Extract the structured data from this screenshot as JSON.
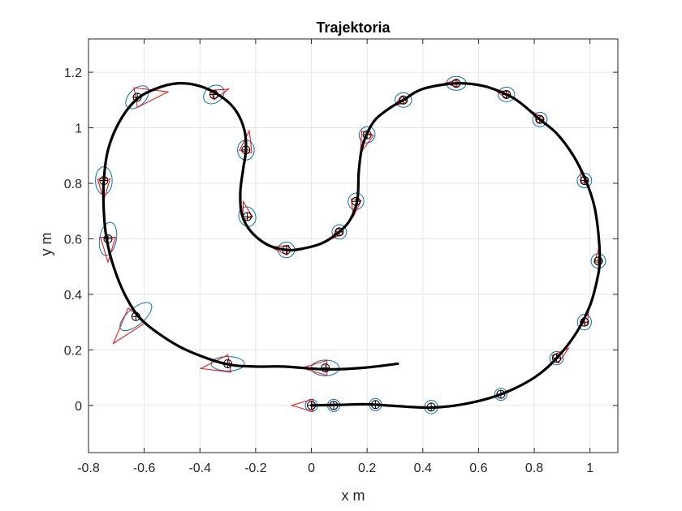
{
  "chart_data": {
    "type": "line",
    "title": "Trajektoria",
    "xlabel": "x m",
    "ylabel": "y m",
    "xlim": [
      -0.8,
      1.1
    ],
    "ylim": [
      -0.17,
      1.32
    ],
    "xticks": [
      -0.8,
      -0.6,
      -0.4,
      -0.2,
      0,
      0.2,
      0.4,
      0.6,
      0.8,
      1
    ],
    "xtick_labels": [
      "-0.8",
      "-0.6",
      "-0.4",
      "-0.2",
      "0",
      "0.2",
      "0.4",
      "0.6",
      "0.8",
      "1"
    ],
    "yticks": [
      0,
      0.2,
      0.4,
      0.6,
      0.8,
      1,
      1.2
    ],
    "ytick_labels": [
      "0",
      "0.2",
      "0.4",
      "0.6",
      "0.8",
      "1",
      "1.2"
    ],
    "grid": true,
    "colors": {
      "trajectory": "#000000",
      "ellipse": "#0072BD",
      "triangle": "#FF0000",
      "marker": "#000000",
      "grid": "#e6e6e6"
    },
    "trajectory": [
      [
        0,
        0
      ],
      [
        0.1,
        0.002
      ],
      [
        0.2,
        0.004
      ],
      [
        0.3,
        -0.002
      ],
      [
        0.43,
        -0.008
      ],
      [
        0.55,
        0.005
      ],
      [
        0.68,
        0.04
      ],
      [
        0.8,
        0.1
      ],
      [
        0.88,
        0.17
      ],
      [
        0.95,
        0.26
      ],
      [
        1.0,
        0.36
      ],
      [
        1.025,
        0.45
      ],
      [
        1.035,
        0.52
      ],
      [
        1.03,
        0.62
      ],
      [
        1.015,
        0.72
      ],
      [
        0.985,
        0.81
      ],
      [
        0.94,
        0.9
      ],
      [
        0.88,
        0.98
      ],
      [
        0.82,
        1.03
      ],
      [
        0.75,
        1.09
      ],
      [
        0.7,
        1.12
      ],
      [
        0.62,
        1.15
      ],
      [
        0.52,
        1.16
      ],
      [
        0.4,
        1.14
      ],
      [
        0.33,
        1.1
      ],
      [
        0.28,
        1.07
      ],
      [
        0.23,
        1.03
      ],
      [
        0.2,
        0.98
      ],
      [
        0.18,
        0.92
      ],
      [
        0.17,
        0.84
      ],
      [
        0.165,
        0.74
      ],
      [
        0.14,
        0.67
      ],
      [
        0.1,
        0.625
      ],
      [
        0.04,
        0.585
      ],
      [
        -0.03,
        0.565
      ],
      [
        -0.09,
        0.56
      ],
      [
        -0.16,
        0.58
      ],
      [
        -0.22,
        0.63
      ],
      [
        -0.25,
        0.69
      ],
      [
        -0.255,
        0.77
      ],
      [
        -0.245,
        0.85
      ],
      [
        -0.235,
        0.92
      ],
      [
        -0.24,
        0.99
      ],
      [
        -0.27,
        1.06
      ],
      [
        -0.32,
        1.11
      ],
      [
        -0.4,
        1.15
      ],
      [
        -0.48,
        1.16
      ],
      [
        -0.56,
        1.14
      ],
      [
        -0.63,
        1.1
      ],
      [
        -0.69,
        1.02
      ],
      [
        -0.73,
        0.92
      ],
      [
        -0.745,
        0.81
      ],
      [
        -0.745,
        0.7
      ],
      [
        -0.735,
        0.6
      ],
      [
        -0.71,
        0.5
      ],
      [
        -0.67,
        0.4
      ],
      [
        -0.62,
        0.32
      ],
      [
        -0.55,
        0.26
      ],
      [
        -0.45,
        0.2
      ],
      [
        -0.31,
        0.15
      ],
      [
        -0.2,
        0.14
      ],
      [
        -0.1,
        0.14
      ],
      [
        0.05,
        0.13
      ],
      [
        0.18,
        0.135
      ],
      [
        0.31,
        0.15
      ]
    ],
    "uncertainty_points": [
      {
        "x": 0.0,
        "y": 0.0,
        "ex": 0.022,
        "ey": 0.022,
        "tilt": 0,
        "dir": 180,
        "tri": 0.05
      },
      {
        "x": 0.08,
        "y": 0.0,
        "ex": 0.022,
        "ey": 0.022,
        "tilt": 0,
        "dir": 0,
        "tri": 0.0
      },
      {
        "x": 0.23,
        "y": 0.003,
        "ex": 0.022,
        "ey": 0.022,
        "tilt": 0,
        "dir": 0,
        "tri": 0.0
      },
      {
        "x": 0.43,
        "y": -0.006,
        "ex": 0.024,
        "ey": 0.024,
        "tilt": 0,
        "dir": 0,
        "tri": 0.0
      },
      {
        "x": 0.68,
        "y": 0.04,
        "ex": 0.022,
        "ey": 0.022,
        "tilt": 0,
        "dir": 0,
        "tri": 0.0
      },
      {
        "x": 0.88,
        "y": 0.17,
        "ex": 0.024,
        "ey": 0.024,
        "tilt": 0,
        "dir": 40,
        "tri": 0.04
      },
      {
        "x": 0.98,
        "y": 0.3,
        "ex": 0.025,
        "ey": 0.028,
        "tilt": 0,
        "dir": 70,
        "tri": 0.03
      },
      {
        "x": 1.03,
        "y": 0.52,
        "ex": 0.026,
        "ey": 0.026,
        "tilt": 0,
        "dir": 90,
        "tri": 0.03
      },
      {
        "x": 0.98,
        "y": 0.81,
        "ex": 0.026,
        "ey": 0.026,
        "tilt": 0,
        "dir": 110,
        "tri": 0.03
      },
      {
        "x": 0.82,
        "y": 1.03,
        "ex": 0.026,
        "ey": 0.026,
        "tilt": 0,
        "dir": 135,
        "tri": 0.03
      },
      {
        "x": 0.7,
        "y": 1.12,
        "ex": 0.03,
        "ey": 0.026,
        "tilt": 0,
        "dir": 160,
        "tri": 0.03
      },
      {
        "x": 0.52,
        "y": 1.16,
        "ex": 0.035,
        "ey": 0.025,
        "tilt": 0,
        "dir": 180,
        "tri": 0.03
      },
      {
        "x": 0.33,
        "y": 1.1,
        "ex": 0.03,
        "ey": 0.026,
        "tilt": 0,
        "dir": 210,
        "tri": 0.03
      },
      {
        "x": 0.2,
        "y": 0.975,
        "ex": 0.028,
        "ey": 0.03,
        "tilt": 30,
        "dir": 250,
        "tri": 0.05
      },
      {
        "x": 0.16,
        "y": 0.735,
        "ex": 0.028,
        "ey": 0.03,
        "tilt": 20,
        "dir": 260,
        "tri": 0.04
      },
      {
        "x": 0.1,
        "y": 0.625,
        "ex": 0.026,
        "ey": 0.026,
        "tilt": 0,
        "dir": 220,
        "tri": 0.03
      },
      {
        "x": -0.09,
        "y": 0.56,
        "ex": 0.03,
        "ey": 0.028,
        "tilt": 0,
        "dir": 170,
        "tri": 0.04
      },
      {
        "x": -0.23,
        "y": 0.68,
        "ex": 0.03,
        "ey": 0.036,
        "tilt": -20,
        "dir": 105,
        "tri": 0.04
      },
      {
        "x": -0.235,
        "y": 0.92,
        "ex": 0.03,
        "ey": 0.036,
        "tilt": 0,
        "dir": 80,
        "tri": 0.05
      },
      {
        "x": -0.35,
        "y": 1.12,
        "ex": 0.04,
        "ey": 0.03,
        "tilt": -35,
        "dir": 20,
        "tri": 0.04
      },
      {
        "x": -0.625,
        "y": 1.11,
        "ex": 0.05,
        "ey": 0.03,
        "tilt": -45,
        "dir": 10,
        "tri": 0.08
      },
      {
        "x": -0.745,
        "y": 0.81,
        "ex": 0.03,
        "ey": 0.05,
        "tilt": 0,
        "dir": 270,
        "tri": 0.05
      },
      {
        "x": -0.73,
        "y": 0.6,
        "ex": 0.03,
        "ey": 0.06,
        "tilt": 10,
        "dir": 270,
        "tri": 0.06
      },
      {
        "x": -0.63,
        "y": 0.32,
        "ex": 0.07,
        "ey": 0.03,
        "tilt": -40,
        "dir": 230,
        "tri": 0.09
      },
      {
        "x": -0.3,
        "y": 0.15,
        "ex": 0.06,
        "ey": 0.026,
        "tilt": 0,
        "dir": 190,
        "tri": 0.07
      },
      {
        "x": 0.05,
        "y": 0.135,
        "ex": 0.05,
        "ey": 0.028,
        "tilt": 0,
        "dir": 180,
        "tri": 0.06
      }
    ]
  }
}
